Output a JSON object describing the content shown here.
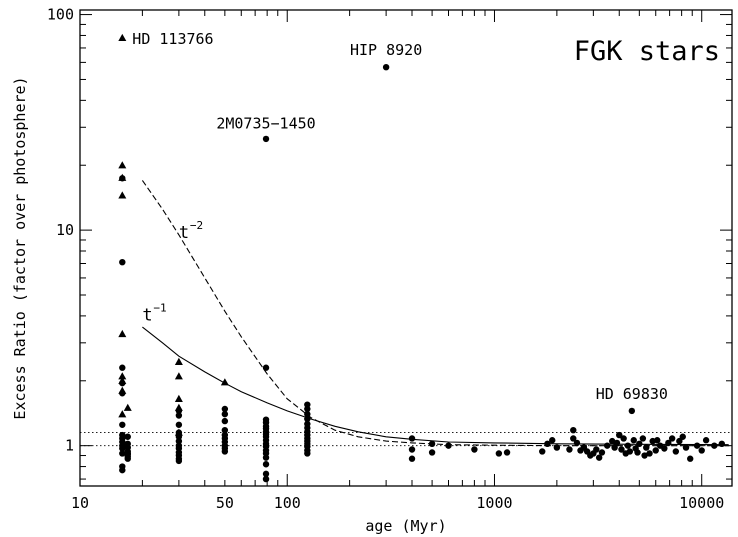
{
  "chart_data": {
    "type": "scatter",
    "xlabel": "age (Myr)",
    "ylabel": "Excess Ratio (factor over photosphere)",
    "xscale": "log",
    "yscale": "log",
    "xlim": [
      10,
      14000
    ],
    "ylim": [
      0.65,
      105
    ],
    "x_tick_labels": [
      {
        "value": 10,
        "label": "10"
      },
      {
        "value": 50,
        "label": "50"
      },
      {
        "value": 100,
        "label": "100"
      },
      {
        "value": 1000,
        "label": "1000"
      },
      {
        "value": 10000,
        "label": "10000"
      }
    ],
    "y_tick_labels": [
      {
        "value": 1,
        "label": "1"
      },
      {
        "value": 10,
        "label": "10"
      },
      {
        "value": 100,
        "label": "100"
      }
    ],
    "corner_label": "FGK stars",
    "annotations": [
      {
        "text": "HD 113766",
        "x": 16,
        "y": 78
      },
      {
        "text": "HIP 8920",
        "x": 300,
        "y": 57
      },
      {
        "text": "2M0735−1450",
        "x": 79,
        "y": 26
      },
      {
        "text": "HD 69830",
        "x": 4600,
        "y": 1.45
      }
    ],
    "curve_labels": [
      {
        "text": "t",
        "exponent": "−2",
        "x": 30,
        "y": 9.2,
        "style": "dashed"
      },
      {
        "text": "t",
        "exponent": "−1",
        "x": 20,
        "y": 3.8,
        "style": "solid"
      }
    ],
    "reference_lines": [
      {
        "y": 1.0,
        "style": "dotted"
      },
      {
        "y": 1.15,
        "style": "dotted"
      }
    ],
    "curves": [
      {
        "style": "solid",
        "points": [
          [
            20,
            3.55
          ],
          [
            25,
            3.0
          ],
          [
            30,
            2.6
          ],
          [
            40,
            2.2
          ],
          [
            50,
            1.95
          ],
          [
            60,
            1.78
          ],
          [
            80,
            1.58
          ],
          [
            100,
            1.45
          ],
          [
            130,
            1.33
          ],
          [
            170,
            1.23
          ],
          [
            220,
            1.16
          ],
          [
            300,
            1.1
          ],
          [
            400,
            1.07
          ],
          [
            600,
            1.04
          ],
          [
            1000,
            1.03
          ],
          [
            2000,
            1.02
          ],
          [
            5000,
            1.015
          ],
          [
            13500,
            1.01
          ]
        ]
      },
      {
        "style": "dashed",
        "points": [
          [
            20,
            17.0
          ],
          [
            25,
            12.5
          ],
          [
            30,
            9.5
          ],
          [
            40,
            6.0
          ],
          [
            50,
            4.2
          ],
          [
            60,
            3.2
          ],
          [
            80,
            2.15
          ],
          [
            100,
            1.65
          ],
          [
            130,
            1.35
          ],
          [
            170,
            1.18
          ],
          [
            220,
            1.1
          ],
          [
            300,
            1.05
          ],
          [
            400,
            1.03
          ],
          [
            600,
            1.01
          ],
          [
            1000,
            1.005
          ],
          [
            2000,
            1.0
          ],
          [
            13500,
            1.0
          ]
        ]
      }
    ],
    "series": [
      {
        "marker": "triangle",
        "points": [
          [
            16,
            78
          ],
          [
            16,
            20
          ],
          [
            16,
            17.5
          ],
          [
            16,
            14.5
          ],
          [
            16,
            3.3
          ],
          [
            16,
            2.1
          ],
          [
            16,
            2.0
          ],
          [
            16,
            1.8
          ],
          [
            16,
            1.4
          ],
          [
            17,
            1.5
          ],
          [
            30,
            2.45
          ],
          [
            30,
            2.1
          ],
          [
            30,
            1.65
          ],
          [
            30,
            1.5
          ],
          [
            30,
            1.15
          ],
          [
            50,
            1.97
          ]
        ]
      },
      {
        "marker": "circle",
        "points": [
          [
            16,
            17.4
          ],
          [
            16,
            7.1
          ],
          [
            16,
            2.3
          ],
          [
            16,
            1.95
          ],
          [
            16,
            1.75
          ],
          [
            16,
            1.25
          ],
          [
            16,
            1.12
          ],
          [
            16,
            1.08
          ],
          [
            16,
            1.04
          ],
          [
            16,
            1.0
          ],
          [
            16,
            0.97
          ],
          [
            16,
            0.92
          ],
          [
            16,
            0.8
          ],
          [
            16,
            0.77
          ],
          [
            17,
            1.1
          ],
          [
            17,
            1.02
          ],
          [
            17,
            0.98
          ],
          [
            17,
            0.94
          ],
          [
            17,
            0.92
          ],
          [
            17,
            0.91
          ],
          [
            17,
            0.89
          ],
          [
            17,
            0.87
          ],
          [
            30,
            1.45
          ],
          [
            30,
            1.38
          ],
          [
            30,
            1.25
          ],
          [
            30,
            1.15
          ],
          [
            30,
            1.1
          ],
          [
            30,
            1.05
          ],
          [
            30,
            1.0
          ],
          [
            30,
            0.97
          ],
          [
            30,
            0.93
          ],
          [
            30,
            0.9
          ],
          [
            30,
            0.87
          ],
          [
            30,
            0.85
          ],
          [
            50,
            1.48
          ],
          [
            50,
            1.4
          ],
          [
            50,
            1.3
          ],
          [
            50,
            1.18
          ],
          [
            50,
            1.12
          ],
          [
            50,
            1.08
          ],
          [
            50,
            1.04
          ],
          [
            50,
            1.0
          ],
          [
            50,
            0.97
          ],
          [
            50,
            0.94
          ],
          [
            79,
            26.5
          ],
          [
            79,
            2.3
          ],
          [
            79,
            1.32
          ],
          [
            79,
            1.28
          ],
          [
            79,
            1.23
          ],
          [
            79,
            1.2
          ],
          [
            79,
            1.16
          ],
          [
            79,
            1.13
          ],
          [
            79,
            1.1
          ],
          [
            79,
            1.06
          ],
          [
            79,
            1.02
          ],
          [
            79,
            0.99
          ],
          [
            79,
            0.95
          ],
          [
            79,
            0.92
          ],
          [
            79,
            0.88
          ],
          [
            79,
            0.82
          ],
          [
            79,
            0.74
          ],
          [
            79,
            0.7
          ],
          [
            125,
            1.55
          ],
          [
            125,
            1.48
          ],
          [
            125,
            1.4
          ],
          [
            125,
            1.33
          ],
          [
            125,
            1.26
          ],
          [
            125,
            1.21
          ],
          [
            125,
            1.16
          ],
          [
            125,
            1.12
          ],
          [
            125,
            1.08
          ],
          [
            125,
            1.05
          ],
          [
            125,
            1.02
          ],
          [
            125,
            0.99
          ],
          [
            125,
            0.95
          ],
          [
            125,
            0.92
          ],
          [
            300,
            57
          ],
          [
            400,
            1.08
          ],
          [
            400,
            0.96
          ],
          [
            400,
            0.87
          ],
          [
            500,
            1.02
          ],
          [
            500,
            0.93
          ],
          [
            600,
            1.0
          ],
          [
            800,
            0.96
          ],
          [
            1050,
            0.92
          ],
          [
            1150,
            0.93
          ],
          [
            1700,
            0.94
          ],
          [
            1800,
            1.02
          ],
          [
            1900,
            1.06
          ],
          [
            2300,
            0.96
          ],
          [
            2400,
            1.18
          ],
          [
            2400,
            1.08
          ],
          [
            2500,
            1.03
          ],
          [
            2600,
            0.95
          ],
          [
            2700,
            0.98
          ],
          [
            2800,
            0.94
          ],
          [
            2900,
            0.9
          ],
          [
            3000,
            0.92
          ],
          [
            3100,
            0.96
          ],
          [
            3200,
            0.88
          ],
          [
            3300,
            0.93
          ],
          [
            3700,
            1.05
          ],
          [
            3800,
            0.98
          ],
          [
            3900,
            1.03
          ],
          [
            4000,
            1.12
          ],
          [
            4100,
            0.96
          ],
          [
            4200,
            1.08
          ],
          [
            4300,
            0.92
          ],
          [
            4400,
            1.0
          ],
          [
            4500,
            0.94
          ],
          [
            4600,
            1.45
          ],
          [
            4700,
            1.06
          ],
          [
            4800,
            0.97
          ],
          [
            4900,
            0.93
          ],
          [
            5000,
            1.02
          ],
          [
            5200,
            1.08
          ],
          [
            5400,
            0.98
          ],
          [
            5600,
            0.92
          ],
          [
            5800,
            1.05
          ],
          [
            6000,
            0.95
          ],
          [
            6300,
            1.0
          ],
          [
            6600,
            0.97
          ],
          [
            6900,
            1.03
          ],
          [
            7200,
            1.08
          ],
          [
            7500,
            0.94
          ],
          [
            7800,
            1.05
          ],
          [
            8100,
            1.1
          ],
          [
            8400,
            0.98
          ],
          [
            8800,
            0.87
          ],
          [
            9500,
            1.0
          ],
          [
            10000,
            0.95
          ],
          [
            10500,
            1.06
          ],
          [
            11500,
            1.0
          ],
          [
            12500,
            1.02
          ],
          [
            5300,
            0.9
          ],
          [
            6100,
            1.06
          ],
          [
            3500,
            1.0
          ],
          [
            2000,
            0.98
          ]
        ]
      }
    ]
  }
}
